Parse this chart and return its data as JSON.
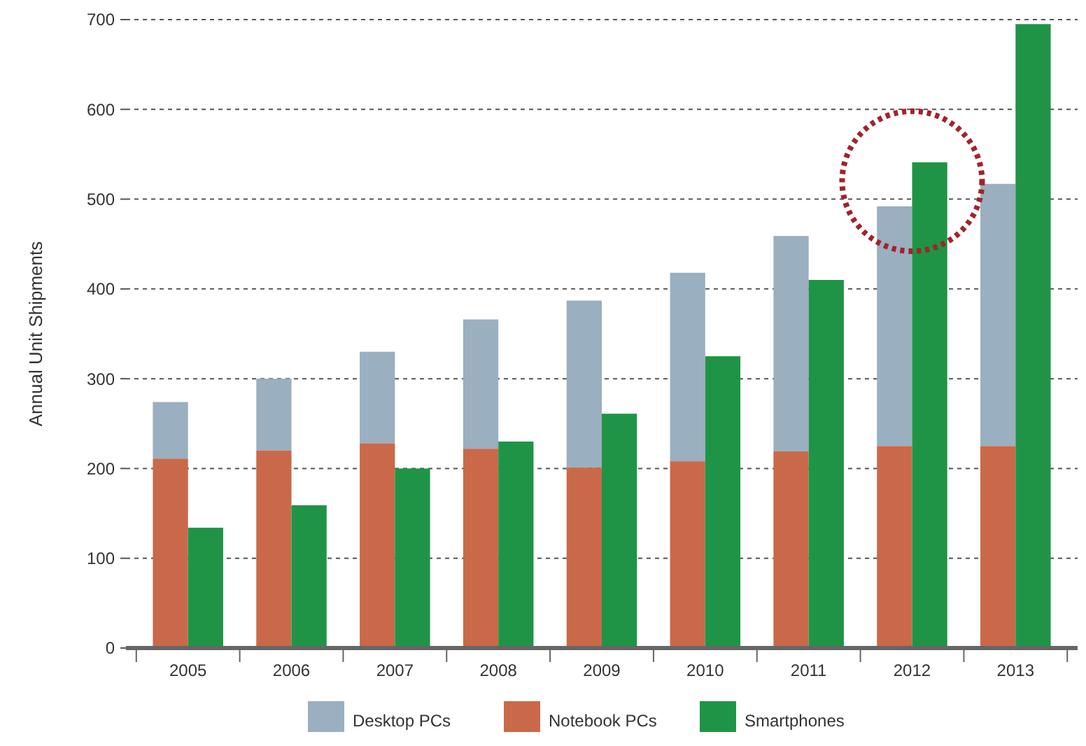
{
  "chart_data": {
    "type": "bar",
    "ylabel": "Annual Unit Shipments",
    "categories": [
      "2005",
      "2006",
      "2007",
      "2008",
      "2009",
      "2010",
      "2011",
      "2012",
      "2013"
    ],
    "series": [
      {
        "name": "Desktop PCs",
        "color": "#9aafbf",
        "values": [
          63,
          80,
          102,
          144,
          186,
          210,
          240,
          267,
          292
        ],
        "base": [
          211,
          220,
          228,
          222,
          201,
          208,
          219,
          225,
          225
        ]
      },
      {
        "name": "Notebook PCs",
        "color": "#c9694a",
        "values": [
          211,
          220,
          228,
          222,
          201,
          208,
          219,
          225,
          225
        ]
      },
      {
        "name": "Smartphones",
        "color": "#1f9447",
        "values": [
          134,
          159,
          200,
          230,
          261,
          325,
          410,
          541,
          695
        ]
      }
    ],
    "ylim": [
      0,
      700
    ],
    "yticks": [
      0,
      100,
      200,
      300,
      400,
      500,
      600,
      700
    ],
    "grid": "y",
    "legend": "bottom"
  }
}
